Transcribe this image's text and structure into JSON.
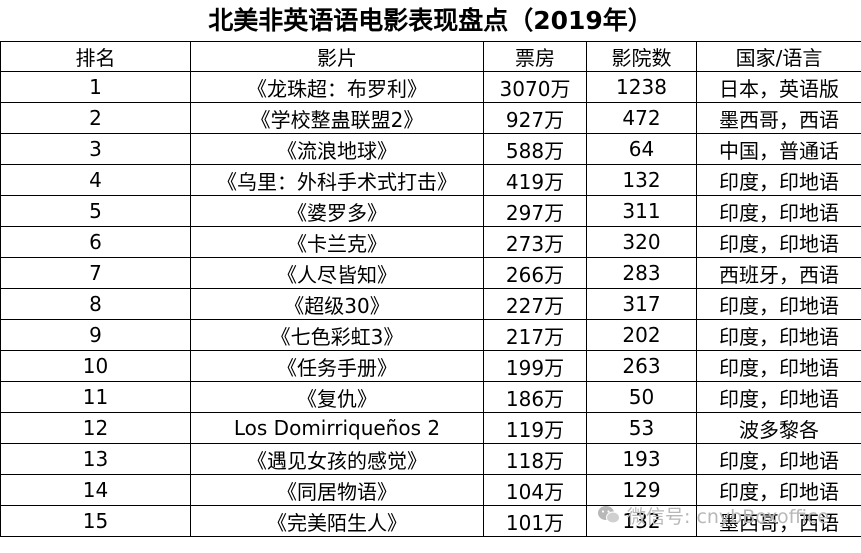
{
  "title": "北美非英语语电影表现盘点（2019年）",
  "headers": [
    "排名",
    "影片",
    "票房",
    "影院数",
    "国家/语言"
  ],
  "rows": [
    [
      "1",
      "《龙珠超：布罗利》",
      "3070万",
      "1238",
      "日本，英语版"
    ],
    [
      "2",
      "《学校整蛊联盟2》",
      "927万",
      "472",
      "墨西哥，西语"
    ],
    [
      "3",
      "《流浪地球》",
      "588万",
      "64",
      "中国，普通话"
    ],
    [
      "4",
      "《乌里：外科手术式打击》",
      "419万",
      "132",
      "印度，印地语"
    ],
    [
      "5",
      "《婆罗多》",
      "297万",
      "311",
      "印度，印地语"
    ],
    [
      "6",
      "《卡兰克》",
      "273万",
      "320",
      "印度，印地语"
    ],
    [
      "7",
      "《人尽皆知》",
      "266万",
      "283",
      "西班牙，西语"
    ],
    [
      "8",
      "《超级30》",
      "227万",
      "317",
      "印度，印地语"
    ],
    [
      "9",
      "《七色彩虹3》",
      "217万",
      "202",
      "印度，印地语"
    ],
    [
      "10",
      "《任务手册》",
      "199万",
      "263",
      "印度，印地语"
    ],
    [
      "11",
      "《复仇》",
      "186万",
      "50",
      "印度，印地语"
    ],
    [
      "12",
      "Los Domirriqueños 2",
      "119万",
      "53",
      "波多黎各"
    ],
    [
      "13",
      "《遇见女孩的感觉》",
      "118万",
      "193",
      "印度，印地语"
    ],
    [
      "14",
      "《同居物语》",
      "104万",
      "129",
      "印度，印地语"
    ],
    [
      "15",
      "《完美陌生人》",
      "101万",
      "132",
      "墨西哥，西语"
    ]
  ],
  "watermark": {
    "text": "微信号: cnybBoxoffice",
    "icon": "wechat-icon",
    "color": "#b8b8b8"
  }
}
